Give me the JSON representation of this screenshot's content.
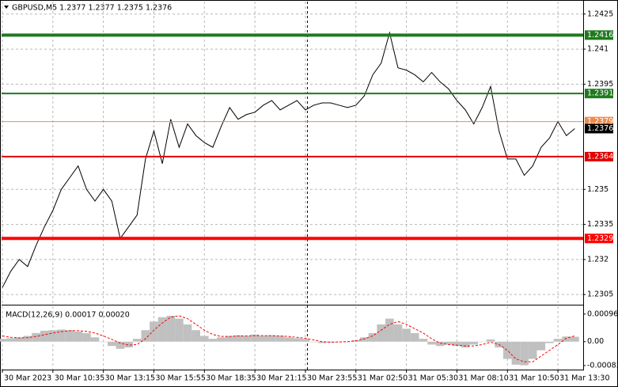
{
  "chart_data": [
    {
      "type": "line",
      "title": "GBPUSD,M5  1.2377 1.2377 1.2375 1.2376",
      "categories": [
        "30 Mar 2023",
        null,
        null,
        null,
        null,
        null,
        "30 Mar 10:35",
        null,
        null,
        null,
        null,
        null,
        "30 Mar 13:15",
        null,
        null,
        null,
        null,
        null,
        "30 Mar 15:55",
        null,
        null,
        null,
        null,
        null,
        "30 Mar 18:35",
        null,
        null,
        null,
        null,
        null,
        "30 Mar 21:15",
        null,
        null,
        null,
        null,
        null,
        "30 Mar 23:55",
        null,
        null,
        null,
        null,
        null,
        "31 Mar 02:50",
        null,
        null,
        null,
        null,
        null,
        "31 Mar 05:30",
        null,
        null,
        null,
        null,
        null,
        "31 Mar 08:10",
        null,
        null,
        null,
        null,
        null,
        "31 Mar 10:50",
        null,
        null,
        null,
        null,
        null,
        "31 Mar 13:30",
        null,
        null
      ],
      "series": [
        {
          "color": "#000000",
          "values": [
            1.2308,
            1.2315,
            1.232,
            1.2317,
            1.2326,
            1.2334,
            1.2341,
            1.235,
            1.2355,
            1.236,
            1.235,
            1.2345,
            1.235,
            1.2345,
            1.2329,
            1.2334,
            1.2339,
            1.2363,
            1.2375,
            1.2361,
            1.238,
            1.2368,
            1.2378,
            1.2373,
            1.237,
            1.2368,
            1.2377,
            1.2385,
            1.238,
            1.2382,
            1.2383,
            1.2386,
            1.2388,
            1.2384,
            1.2386,
            1.2388,
            1.2384,
            1.2386,
            1.2387,
            1.2387,
            1.2386,
            1.2385,
            1.2386,
            1.239,
            1.2399,
            1.2404,
            1.2417,
            1.2402,
            1.2401,
            1.2399,
            1.2396,
            1.24,
            1.2396,
            1.2393,
            1.2388,
            1.2384,
            1.2378,
            1.2385,
            1.2394,
            1.2375,
            1.2363,
            1.2363,
            1.2356,
            1.236,
            1.2368,
            1.2372,
            1.2379,
            1.2373,
            1.2376
          ]
        }
      ],
      "ylim": [
        1.2301,
        1.243
      ],
      "yticks": [
        1.2425,
        1.241,
        1.2395,
        1.235,
        1.2335,
        1.232,
        1.2305
      ],
      "grid": true,
      "levels": [
        {
          "value": 1.2416,
          "color": "#1f7a1f",
          "line_width": 4
        },
        {
          "value": 1.2391,
          "color": "#1f7a1f",
          "line_width": 2
        },
        {
          "value": 1.2379,
          "color": "#f08a4b",
          "line_width": 1
        },
        {
          "value": 1.2364,
          "color": "#e00000",
          "line_width": 2
        },
        {
          "value": 1.2329,
          "color": "#ff0000",
          "line_width": 4
        }
      ]
    },
    {
      "type": "macd",
      "title": "MACD(12,26,9) 0.00017 0.00020",
      "series": [
        {
          "color": "#c0c0c0",
          "values": [
            0.0001,
            0.00012,
            0.00015,
            0.0002,
            0.0003,
            0.00038,
            0.0004,
            0.00042,
            0.0004,
            0.00035,
            0.0003,
            0.00015,
            0.0,
            -0.00015,
            -0.00025,
            -0.0002,
            0.0001,
            0.0004,
            0.0007,
            0.00085,
            0.0009,
            0.0008,
            0.0006,
            0.0004,
            0.0002,
            0.0001,
            0.00015,
            0.0002,
            0.00022,
            0.0002,
            0.00025,
            0.0002,
            0.00022,
            0.0002,
            0.00015,
            0.00012,
            0.0001,
            0.0,
            -5e-05,
            -3e-05,
            0.0,
            0.0,
            5e-05,
            0.00015,
            0.0003,
            0.0006,
            0.0008,
            0.0006,
            0.00045,
            0.0003,
            0.0001,
            -0.0001,
            -0.00015,
            -0.0001,
            -0.00015,
            -0.0002,
            -0.0001,
            0.0,
            8e-05,
            -0.0002,
            -0.0006,
            -0.0008,
            -0.00082,
            -0.0006,
            -0.0003,
            -5e-05,
            0.0001,
            0.00018,
            0.00017
          ]
        },
        {
          "color": "#ff0000",
          "values": [
            0.0002,
            0.00015,
            0.00013,
            0.00014,
            0.00018,
            0.00024,
            0.0003,
            0.00035,
            0.00038,
            0.00038,
            0.00036,
            0.0003,
            0.0002,
            8e-05,
            -5e-05,
            -0.00012,
            -0.0001,
            0.0001,
            0.0004,
            0.00065,
            0.00085,
            0.0009,
            0.0008,
            0.0006,
            0.0004,
            0.00025,
            0.00018,
            0.00018,
            0.0002,
            0.0002,
            0.00021,
            0.00021,
            0.00021,
            0.0002,
            0.00018,
            0.00015,
            0.00012,
            6e-05,
            0.0,
            -2e-05,
            -1e-05,
            0.0,
            3e-05,
            0.0001,
            0.0002,
            0.0004,
            0.0006,
            0.0007,
            0.0006,
            0.00045,
            0.0003,
            0.0001,
            -5e-05,
            -0.0001,
            -0.00012,
            -0.00015,
            -0.00015,
            -0.0001,
            -2e-05,
            -0.0001,
            -0.0003,
            -0.0006,
            -0.0007,
            -0.0007,
            -0.0005,
            -0.0003,
            -0.0001,
            0.00012,
            0.0002
          ]
        }
      ],
      "ylim": [
        -0.00097,
        0.00123
      ],
      "yticks": [
        0.00096,
        {
          "value": 0,
          "label": "0.00"
        },
        -0.00083
      ]
    }
  ]
}
